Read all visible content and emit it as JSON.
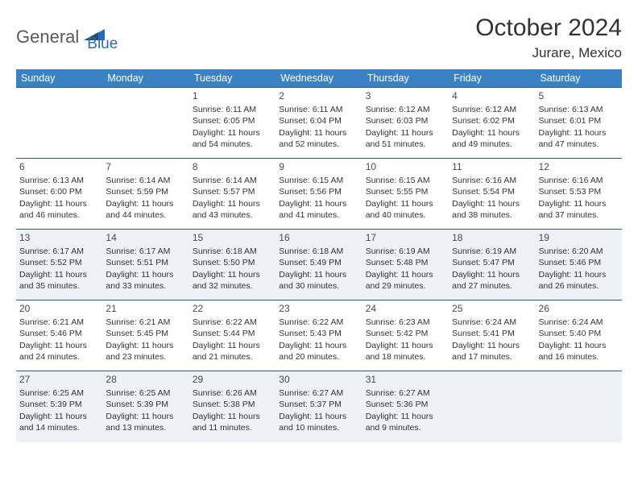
{
  "logo": {
    "text1": "General",
    "text2": "Blue"
  },
  "title": "October 2024",
  "location": "Jurare, Mexico",
  "colors": {
    "header_bg": "#3b82c4",
    "header_text": "#ffffff",
    "row_border": "#2b5a87",
    "alt_row_bg": "#eef1f5",
    "logo_gray": "#5a5a5a",
    "logo_blue": "#2b6cb0"
  },
  "day_names": [
    "Sunday",
    "Monday",
    "Tuesday",
    "Wednesday",
    "Thursday",
    "Friday",
    "Saturday"
  ],
  "weeks": [
    {
      "alt": false,
      "cells": [
        {
          "day": "",
          "lines": []
        },
        {
          "day": "",
          "lines": []
        },
        {
          "day": "1",
          "lines": [
            "Sunrise: 6:11 AM",
            "Sunset: 6:05 PM",
            "Daylight: 11 hours and 54 minutes."
          ]
        },
        {
          "day": "2",
          "lines": [
            "Sunrise: 6:11 AM",
            "Sunset: 6:04 PM",
            "Daylight: 11 hours and 52 minutes."
          ]
        },
        {
          "day": "3",
          "lines": [
            "Sunrise: 6:12 AM",
            "Sunset: 6:03 PM",
            "Daylight: 11 hours and 51 minutes."
          ]
        },
        {
          "day": "4",
          "lines": [
            "Sunrise: 6:12 AM",
            "Sunset: 6:02 PM",
            "Daylight: 11 hours and 49 minutes."
          ]
        },
        {
          "day": "5",
          "lines": [
            "Sunrise: 6:13 AM",
            "Sunset: 6:01 PM",
            "Daylight: 11 hours and 47 minutes."
          ]
        }
      ]
    },
    {
      "alt": false,
      "cells": [
        {
          "day": "6",
          "lines": [
            "Sunrise: 6:13 AM",
            "Sunset: 6:00 PM",
            "Daylight: 11 hours and 46 minutes."
          ]
        },
        {
          "day": "7",
          "lines": [
            "Sunrise: 6:14 AM",
            "Sunset: 5:59 PM",
            "Daylight: 11 hours and 44 minutes."
          ]
        },
        {
          "day": "8",
          "lines": [
            "Sunrise: 6:14 AM",
            "Sunset: 5:57 PM",
            "Daylight: 11 hours and 43 minutes."
          ]
        },
        {
          "day": "9",
          "lines": [
            "Sunrise: 6:15 AM",
            "Sunset: 5:56 PM",
            "Daylight: 11 hours and 41 minutes."
          ]
        },
        {
          "day": "10",
          "lines": [
            "Sunrise: 6:15 AM",
            "Sunset: 5:55 PM",
            "Daylight: 11 hours and 40 minutes."
          ]
        },
        {
          "day": "11",
          "lines": [
            "Sunrise: 6:16 AM",
            "Sunset: 5:54 PM",
            "Daylight: 11 hours and 38 minutes."
          ]
        },
        {
          "day": "12",
          "lines": [
            "Sunrise: 6:16 AM",
            "Sunset: 5:53 PM",
            "Daylight: 11 hours and 37 minutes."
          ]
        }
      ]
    },
    {
      "alt": true,
      "cells": [
        {
          "day": "13",
          "lines": [
            "Sunrise: 6:17 AM",
            "Sunset: 5:52 PM",
            "Daylight: 11 hours and 35 minutes."
          ]
        },
        {
          "day": "14",
          "lines": [
            "Sunrise: 6:17 AM",
            "Sunset: 5:51 PM",
            "Daylight: 11 hours and 33 minutes."
          ]
        },
        {
          "day": "15",
          "lines": [
            "Sunrise: 6:18 AM",
            "Sunset: 5:50 PM",
            "Daylight: 11 hours and 32 minutes."
          ]
        },
        {
          "day": "16",
          "lines": [
            "Sunrise: 6:18 AM",
            "Sunset: 5:49 PM",
            "Daylight: 11 hours and 30 minutes."
          ]
        },
        {
          "day": "17",
          "lines": [
            "Sunrise: 6:19 AM",
            "Sunset: 5:48 PM",
            "Daylight: 11 hours and 29 minutes."
          ]
        },
        {
          "day": "18",
          "lines": [
            "Sunrise: 6:19 AM",
            "Sunset: 5:47 PM",
            "Daylight: 11 hours and 27 minutes."
          ]
        },
        {
          "day": "19",
          "lines": [
            "Sunrise: 6:20 AM",
            "Sunset: 5:46 PM",
            "Daylight: 11 hours and 26 minutes."
          ]
        }
      ]
    },
    {
      "alt": false,
      "cells": [
        {
          "day": "20",
          "lines": [
            "Sunrise: 6:21 AM",
            "Sunset: 5:46 PM",
            "Daylight: 11 hours and 24 minutes."
          ]
        },
        {
          "day": "21",
          "lines": [
            "Sunrise: 6:21 AM",
            "Sunset: 5:45 PM",
            "Daylight: 11 hours and 23 minutes."
          ]
        },
        {
          "day": "22",
          "lines": [
            "Sunrise: 6:22 AM",
            "Sunset: 5:44 PM",
            "Daylight: 11 hours and 21 minutes."
          ]
        },
        {
          "day": "23",
          "lines": [
            "Sunrise: 6:22 AM",
            "Sunset: 5:43 PM",
            "Daylight: 11 hours and 20 minutes."
          ]
        },
        {
          "day": "24",
          "lines": [
            "Sunrise: 6:23 AM",
            "Sunset: 5:42 PM",
            "Daylight: 11 hours and 18 minutes."
          ]
        },
        {
          "day": "25",
          "lines": [
            "Sunrise: 6:24 AM",
            "Sunset: 5:41 PM",
            "Daylight: 11 hours and 17 minutes."
          ]
        },
        {
          "day": "26",
          "lines": [
            "Sunrise: 6:24 AM",
            "Sunset: 5:40 PM",
            "Daylight: 11 hours and 16 minutes."
          ]
        }
      ]
    },
    {
      "alt": true,
      "cells": [
        {
          "day": "27",
          "lines": [
            "Sunrise: 6:25 AM",
            "Sunset: 5:39 PM",
            "Daylight: 11 hours and 14 minutes."
          ]
        },
        {
          "day": "28",
          "lines": [
            "Sunrise: 6:25 AM",
            "Sunset: 5:39 PM",
            "Daylight: 11 hours and 13 minutes."
          ]
        },
        {
          "day": "29",
          "lines": [
            "Sunrise: 6:26 AM",
            "Sunset: 5:38 PM",
            "Daylight: 11 hours and 11 minutes."
          ]
        },
        {
          "day": "30",
          "lines": [
            "Sunrise: 6:27 AM",
            "Sunset: 5:37 PM",
            "Daylight: 11 hours and 10 minutes."
          ]
        },
        {
          "day": "31",
          "lines": [
            "Sunrise: 6:27 AM",
            "Sunset: 5:36 PM",
            "Daylight: 11 hours and 9 minutes."
          ]
        },
        {
          "day": "",
          "lines": []
        },
        {
          "day": "",
          "lines": []
        }
      ]
    }
  ]
}
